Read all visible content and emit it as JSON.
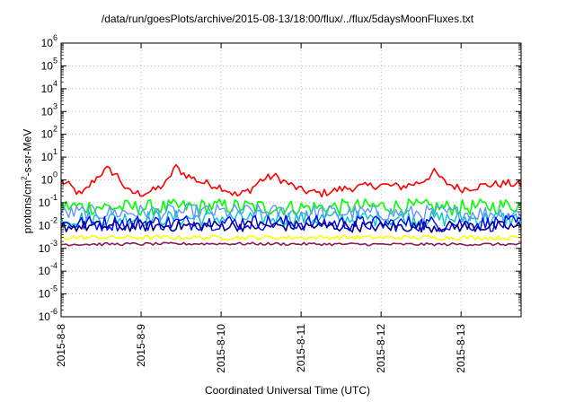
{
  "chart_data": {
    "type": "line",
    "title": "/data/run/goesPlots/archive/2015-08-13/18:00/flux/../flux/5daysMoonFluxes.txt",
    "xlabel": "Coordinated Universal Time (UTC)",
    "ylabel": {
      "before": "protons/cm",
      "sup": "2",
      "after": "-s-sr-MeV"
    },
    "yscale": "log",
    "ylim": [
      1e-06,
      1000000.0
    ],
    "y_ticks": [
      {
        "value": 1e-06,
        "base": "10",
        "exp": "-6"
      },
      {
        "value": 1e-05,
        "base": "10",
        "exp": "-5"
      },
      {
        "value": 0.0001,
        "base": "10",
        "exp": "-4"
      },
      {
        "value": 0.001,
        "base": "10",
        "exp": "-3"
      },
      {
        "value": 0.01,
        "base": "10",
        "exp": "-2"
      },
      {
        "value": 0.1,
        "base": "10",
        "exp": "-1"
      },
      {
        "value": 1.0,
        "base": "10",
        "exp": "0"
      },
      {
        "value": 10.0,
        "base": "10",
        "exp": "1"
      },
      {
        "value": 100.0,
        "base": "10",
        "exp": "2"
      },
      {
        "value": 1000.0,
        "base": "10",
        "exp": "3"
      },
      {
        "value": 10000.0,
        "base": "10",
        "exp": "4"
      },
      {
        "value": 100000.0,
        "base": "10",
        "exp": "5"
      },
      {
        "value": 1000000.0,
        "base": "10",
        "exp": "6"
      }
    ],
    "xlim": [
      "2015-08-08 00:00",
      "2015-08-13 18:00"
    ],
    "x_ticks": [
      {
        "value": "2015-08-08 00:00",
        "label": "2015-8-8"
      },
      {
        "value": "2015-08-09 00:00",
        "label": "2015-8-9"
      },
      {
        "value": "2015-08-10 00:00",
        "label": "2015-8-10"
      },
      {
        "value": "2015-08-11 00:00",
        "label": "2015-8-11"
      },
      {
        "value": "2015-08-12 00:00",
        "label": "2015-8-12"
      },
      {
        "value": "2015-08-13 00:00",
        "label": "2015-8-13"
      }
    ],
    "grid": true,
    "series": [
      {
        "color": "#ff0000",
        "width": 1.6,
        "noise": 0.35,
        "points": [
          [
            "2015-08-08 00:00",
            0.9
          ],
          [
            "2015-08-08 03:00",
            0.5
          ],
          [
            "2015-08-08 06:00",
            0.2
          ],
          [
            "2015-08-08 09:00",
            0.7
          ],
          [
            "2015-08-08 12:00",
            2.0
          ],
          [
            "2015-08-08 14:00",
            3.0
          ],
          [
            "2015-08-08 17:00",
            1.5
          ],
          [
            "2015-08-08 20:00",
            0.3
          ],
          [
            "2015-08-09 00:00",
            0.25
          ],
          [
            "2015-08-09 04:00",
            0.35
          ],
          [
            "2015-08-09 08:00",
            0.8
          ],
          [
            "2015-08-09 10:00",
            4.0
          ],
          [
            "2015-08-09 13:00",
            1.8
          ],
          [
            "2015-08-09 18:00",
            0.8
          ],
          [
            "2015-08-10 00:00",
            0.5
          ],
          [
            "2015-08-10 05:00",
            0.2
          ],
          [
            "2015-08-10 09:00",
            0.4
          ],
          [
            "2015-08-10 12:00",
            1.0
          ],
          [
            "2015-08-10 16:00",
            1.5
          ],
          [
            "2015-08-10 20:00",
            0.7
          ],
          [
            "2015-08-11 00:00",
            0.35
          ],
          [
            "2015-08-11 06:00",
            0.25
          ],
          [
            "2015-08-11 12:00",
            0.4
          ],
          [
            "2015-08-11 18:00",
            0.5
          ],
          [
            "2015-08-12 00:00",
            0.6
          ],
          [
            "2015-08-12 06:00",
            0.5
          ],
          [
            "2015-08-12 12:00",
            0.8
          ],
          [
            "2015-08-12 16:00",
            2.2
          ],
          [
            "2015-08-12 19:00",
            0.8
          ],
          [
            "2015-08-13 00:00",
            0.4
          ],
          [
            "2015-08-13 08:00",
            0.6
          ],
          [
            "2015-08-13 14:00",
            0.7
          ],
          [
            "2015-08-13 18:00",
            0.6
          ]
        ]
      },
      {
        "color": "#00ff00",
        "width": 1.6,
        "noise": 0.7,
        "points": [
          [
            "2015-08-08 00:00",
            0.07
          ],
          [
            "2015-08-09 00:00",
            0.06
          ],
          [
            "2015-08-10 00:00",
            0.07
          ],
          [
            "2015-08-11 00:00",
            0.06
          ],
          [
            "2015-08-12 00:00",
            0.07
          ],
          [
            "2015-08-13 00:00",
            0.06
          ],
          [
            "2015-08-13 18:00",
            0.08
          ]
        ]
      },
      {
        "color": "#00c8c8",
        "width": 1.4,
        "noise": 0.7,
        "points": [
          [
            "2015-08-08 00:00",
            0.02
          ],
          [
            "2015-08-10 00:00",
            0.022
          ],
          [
            "2015-08-12 00:00",
            0.02
          ],
          [
            "2015-08-13 18:00",
            0.02
          ]
        ]
      },
      {
        "color": "#6495ff",
        "width": 1.4,
        "noise": 0.7,
        "points": [
          [
            "2015-08-08 00:00",
            0.035
          ],
          [
            "2015-08-10 00:00",
            0.04
          ],
          [
            "2015-08-12 00:00",
            0.035
          ],
          [
            "2015-08-13 18:00",
            0.035
          ]
        ]
      },
      {
        "color": "#0000ff",
        "width": 1.4,
        "noise": 0.7,
        "points": [
          [
            "2015-08-08 00:00",
            0.012
          ],
          [
            "2015-08-10 00:00",
            0.014
          ],
          [
            "2015-08-12 00:00",
            0.012
          ],
          [
            "2015-08-13 18:00",
            0.012
          ]
        ]
      },
      {
        "color": "#00008b",
        "width": 1.6,
        "noise": 0.5,
        "points": [
          [
            "2015-08-08 00:00",
            0.009
          ],
          [
            "2015-08-10 00:00",
            0.01
          ],
          [
            "2015-08-12 00:00",
            0.009
          ],
          [
            "2015-08-13 18:00",
            0.009
          ]
        ]
      },
      {
        "color": "#ffff00",
        "width": 1.6,
        "noise": 0.2,
        "points": [
          [
            "2015-08-08 00:00",
            0.003
          ],
          [
            "2015-08-10 00:00",
            0.003
          ],
          [
            "2015-08-12 00:00",
            0.003
          ],
          [
            "2015-08-13 18:00",
            0.0029
          ]
        ]
      },
      {
        "color": "#8b1a5c",
        "width": 1.6,
        "noise": 0.12,
        "points": [
          [
            "2015-08-08 00:00",
            0.0015
          ],
          [
            "2015-08-10 00:00",
            0.0016
          ],
          [
            "2015-08-12 00:00",
            0.0015
          ],
          [
            "2015-08-13 18:00",
            0.0015
          ]
        ]
      }
    ]
  }
}
